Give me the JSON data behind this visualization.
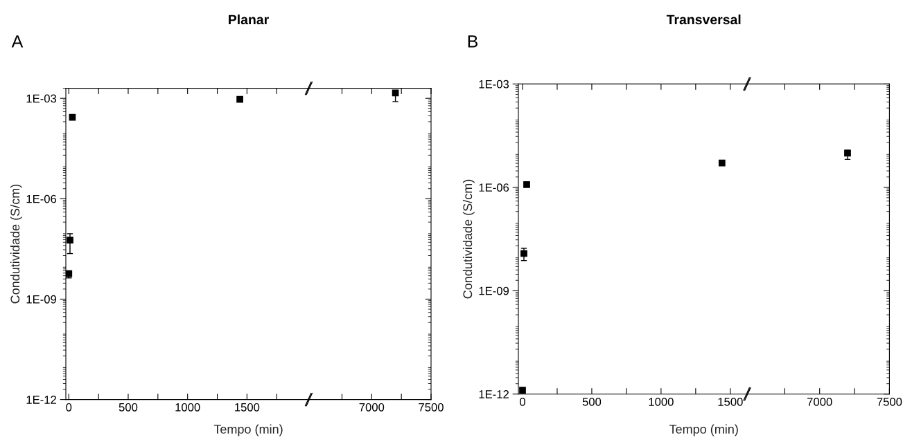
{
  "chart_data": [
    {
      "type": "scatter",
      "title": "Planar",
      "xlabel": "Tempo (min)",
      "ylabel": "Condutividade (S/cm)",
      "annotations": [
        "A"
      ],
      "log": "y",
      "marker": "square",
      "grid": false,
      "legend": false,
      "xlim": [
        -25,
        2020
      ],
      "xticks": [
        0,
        {
          "value": 250,
          "label": null
        },
        500,
        {
          "value": 750,
          "label": null
        },
        1000,
        {
          "value": 1250,
          "label": null
        },
        1500,
        {
          "value": 1750,
          "label": null
        }
      ],
      "ylim": [
        1e-12,
        0.002
      ],
      "yticks": [
        {
          "value": 1e-12,
          "label": "1E-12"
        },
        {
          "value": 1e-09,
          "label": "1E-09"
        },
        {
          "value": 1e-06,
          "label": "1E-06"
        },
        {
          "value": 0.001,
          "label": "1E-03"
        }
      ],
      "series": [
        {
          "color": "#000000",
          "x": [
            0,
            10,
            30,
            1440
          ],
          "values": [
            5.8e-09,
            5.8e-08,
            0.00027,
            0.00093
          ],
          "errors": [
            [
              4.3e-09,
              7e-09
            ],
            [
              2.3e-08,
              9e-08
            ],
            null,
            [
              0.0008,
              0.00105
            ]
          ]
        }
      ]
    },
    {
      "type": "scatter",
      "log": "y",
      "marker": "square",
      "grid": false,
      "legend": false,
      "tick_labels": "x",
      "xlim": [
        6470,
        7500
      ],
      "xticks": [
        {
          "value": 6750,
          "label": null
        },
        7000,
        {
          "value": 7250,
          "label": null
        },
        7500
      ],
      "ylim": [
        1e-12,
        0.002
      ],
      "yticks": [
        {
          "value": 1e-12,
          "label": null
        },
        {
          "value": 1e-09,
          "label": null
        },
        {
          "value": 1e-06,
          "label": null
        },
        {
          "value": 0.001,
          "label": null
        }
      ],
      "series": [
        {
          "color": "#000000",
          "x": [
            7200
          ],
          "values": [
            0.00145
          ],
          "errors": [
            [
              0.0008,
              0.0016
            ]
          ]
        }
      ]
    },
    {
      "type": "scatter",
      "title": "Transversal",
      "xlabel": "Tempo (min)",
      "ylabel": "Condutividade (S/cm)",
      "annotations": [
        "B"
      ],
      "log": "y",
      "marker": "square",
      "grid": false,
      "legend": false,
      "xlim": [
        -30,
        1621
      ],
      "xticks": [
        0,
        {
          "value": 250,
          "label": null
        },
        500,
        {
          "value": 750,
          "label": null
        },
        1000,
        {
          "value": 1250,
          "label": null
        },
        1500
      ],
      "ylim": [
        1e-12,
        0.001
      ],
      "yticks": [
        {
          "value": 1e-12,
          "label": "1E-12"
        },
        {
          "value": 1e-09,
          "label": "1E-09"
        },
        {
          "value": 1e-06,
          "label": "1E-06"
        },
        {
          "value": 0.001,
          "label": "1E-03"
        }
      ],
      "series": [
        {
          "color": "#000000",
          "x": [
            0,
            10,
            30,
            1440
          ],
          "values": [
            1.3e-12,
            1.2e-08,
            1.2e-06,
            5.1e-06
          ],
          "errors": [
            null,
            [
              7.5e-09,
              1.7e-08
            ],
            [
              1.1e-06,
              1.3e-06
            ],
            [
              4.5e-06,
              5.8e-06
            ]
          ]
        }
      ]
    },
    {
      "type": "scatter",
      "log": "y",
      "marker": "square",
      "grid": false,
      "legend": false,
      "tick_labels": "x",
      "xlim": [
        6480,
        7500
      ],
      "xticks": [
        {
          "value": 6750,
          "label": null
        },
        7000,
        {
          "value": 7250,
          "label": null
        },
        7500
      ],
      "ylim": [
        1e-12,
        0.001
      ],
      "yticks": [
        {
          "value": 1e-12,
          "label": null
        },
        {
          "value": 1e-09,
          "label": null
        },
        {
          "value": 1e-06,
          "label": null
        },
        {
          "value": 0.001,
          "label": null
        }
      ],
      "series": [
        {
          "color": "#000000",
          "x": [
            7200
          ],
          "values": [
            9.8e-06
          ],
          "errors": [
            [
              6.5e-06,
              1.2e-05
            ]
          ]
        }
      ]
    }
  ]
}
